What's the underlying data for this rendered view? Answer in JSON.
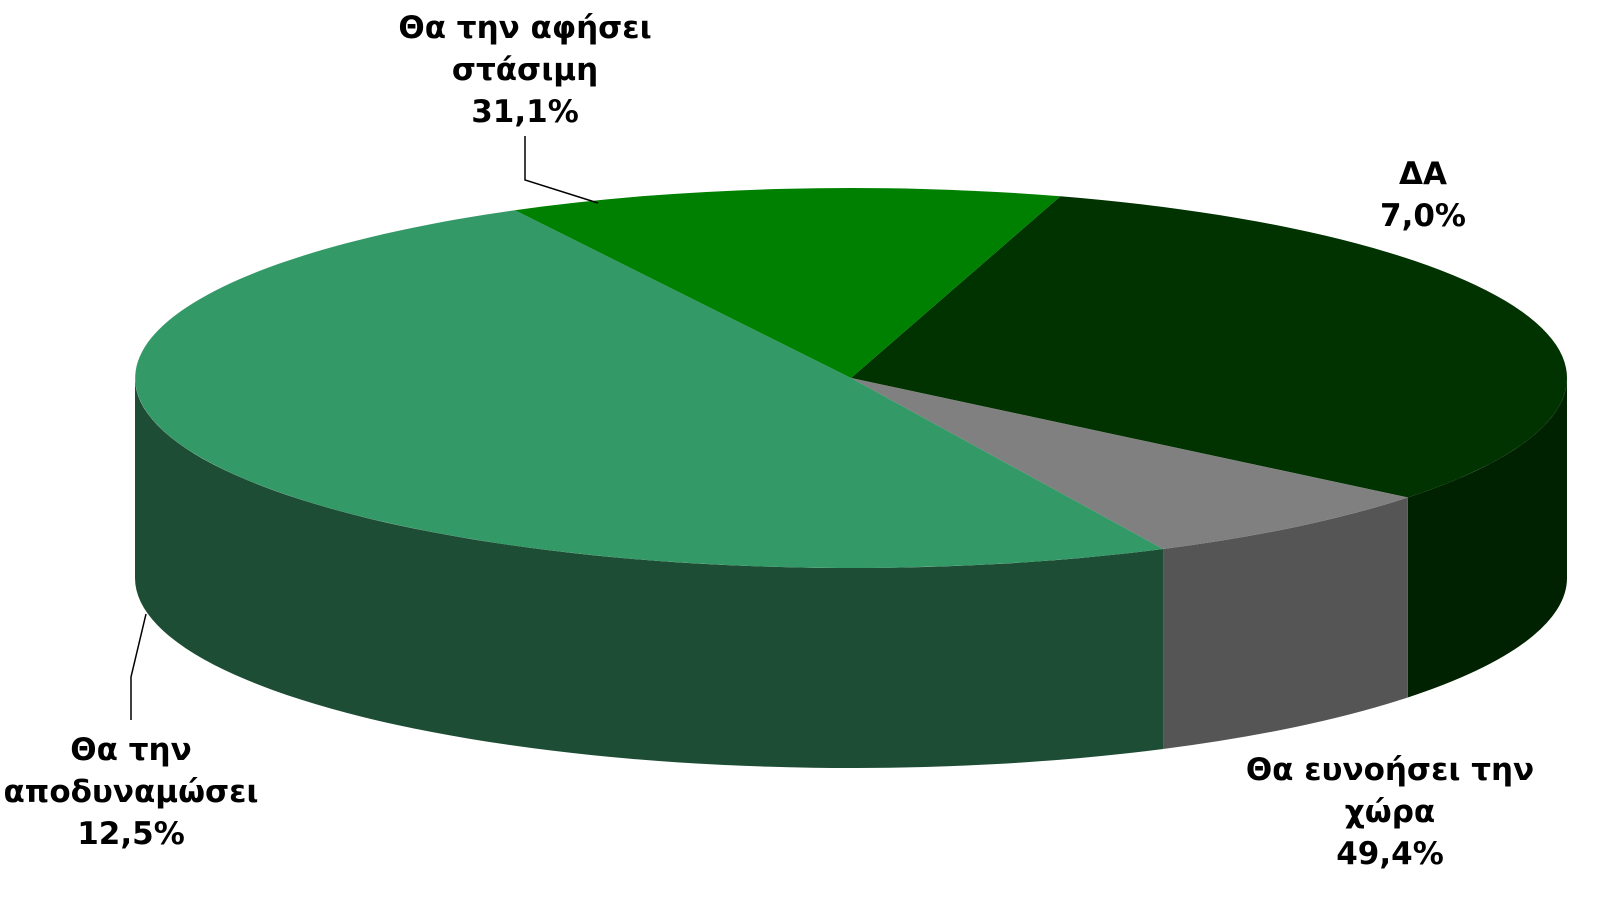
{
  "chart_data": {
    "type": "pie",
    "style": "3d",
    "title": "",
    "slices": [
      {
        "name": "Θα την αφήσει στάσιμη",
        "label_lines": [
          "Θα την αφήσει",
          "στάσιμη"
        ],
        "value": 31.1,
        "value_label": "31,1%",
        "color": "#003300",
        "side_color": "#002200"
      },
      {
        "name": "ΔΑ",
        "label_lines": [
          "ΔΑ"
        ],
        "value": 7.0,
        "value_label": "7,0%",
        "color": "#808080",
        "side_color": "#555555"
      },
      {
        "name": "Θα ευνοήσει την χώρα",
        "label_lines": [
          "Θα ευνοήσει την",
          "χώρα"
        ],
        "value": 49.4,
        "value_label": "49,4%",
        "color": "#339966",
        "side_color": "#1e4d35"
      },
      {
        "name": "Θα την αποδυναμώσει",
        "label_lines": [
          "Θα την",
          "αποδυναμώσει"
        ],
        "value": 12.5,
        "value_label": "12,5%",
        "color": "#008000",
        "side_color": "#003800"
      }
    ],
    "legend": "none"
  }
}
